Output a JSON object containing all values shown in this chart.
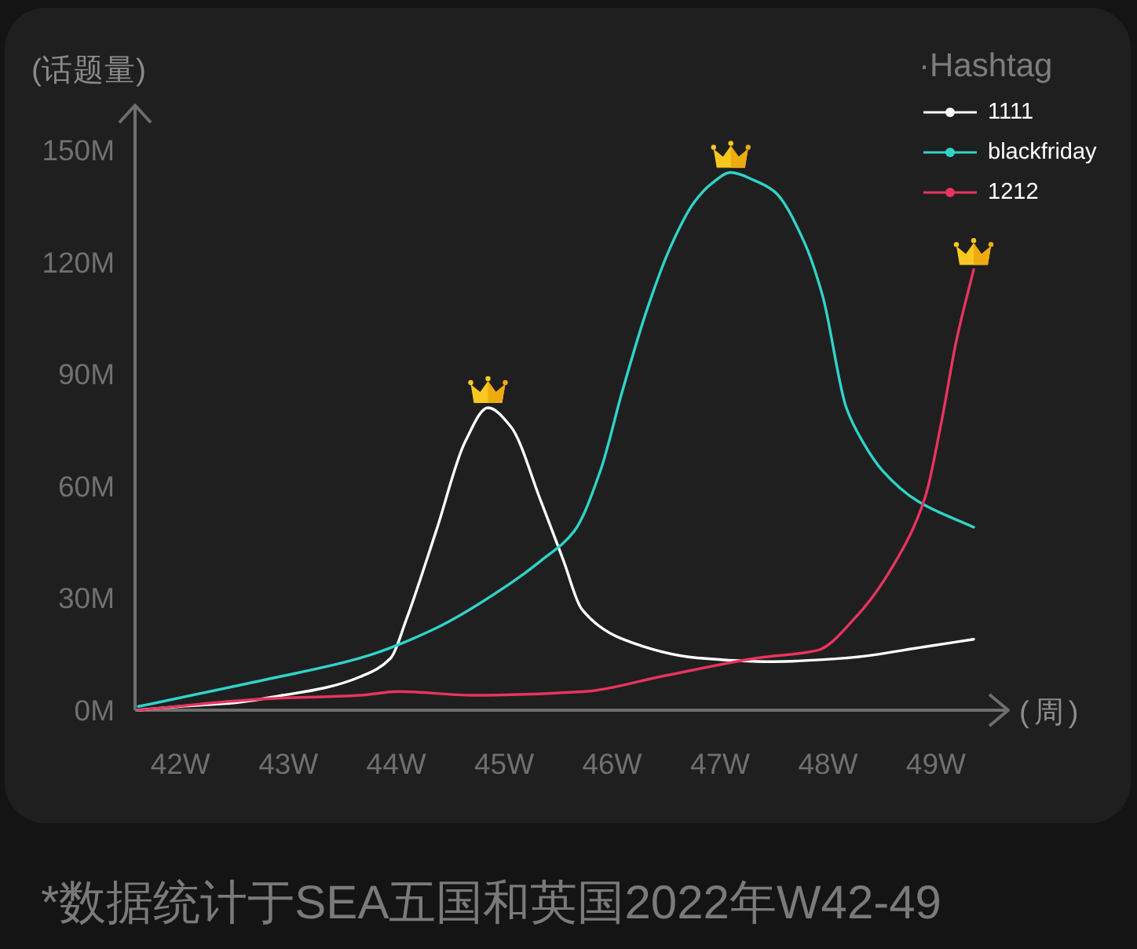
{
  "chart_data": {
    "type": "line",
    "xlabel": "(周)",
    "ylabel": "(话题量)",
    "legend_title": "·Hashtag",
    "legend": "top right",
    "annotations": [
      "*数据统计于SEA五国和英国2022年W42-49"
    ],
    "xlim": [
      41.58,
      49.67
    ],
    "xticks": [
      {
        "value": 42,
        "label": "42W"
      },
      {
        "value": 43,
        "label": "43W"
      },
      {
        "value": 44,
        "label": "44W"
      },
      {
        "value": 45,
        "label": "45W"
      },
      {
        "value": 46,
        "label": "46W"
      },
      {
        "value": 47,
        "label": "47W"
      },
      {
        "value": 48,
        "label": "48W"
      },
      {
        "value": 49,
        "label": "49W"
      }
    ],
    "ylim": [
      0,
      162
    ],
    "yticks": [
      {
        "value": 0,
        "label": "0M"
      },
      {
        "value": 30,
        "label": "30M"
      },
      {
        "value": 60,
        "label": "60M"
      },
      {
        "value": 90,
        "label": "90M"
      },
      {
        "value": 120,
        "label": "120M"
      },
      {
        "value": 150,
        "label": "150M"
      }
    ],
    "series": [
      {
        "name": "1111",
        "color": "#ffffff",
        "x": [
          41.61,
          42.0,
          42.51,
          42.95,
          43.34,
          43.67,
          43.95,
          44.09,
          44.37,
          44.64,
          44.85,
          45.06,
          45.34,
          45.55,
          45.72,
          46.1,
          46.79,
          47.49,
          48.18,
          48.9,
          49.35
        ],
        "values": [
          0,
          1,
          2,
          4,
          6,
          9,
          14,
          24,
          48,
          72,
          81,
          76,
          56,
          40,
          27,
          19,
          14,
          13,
          14,
          17,
          19
        ]
      },
      {
        "name": "blackfriday",
        "color": "#2fd4c8",
        "x": [
          41.61,
          41.78,
          42.76,
          43.67,
          44.37,
          45.06,
          45.34,
          45.65,
          45.89,
          46.1,
          46.32,
          46.54,
          46.76,
          46.92,
          47.1,
          47.31,
          47.5,
          47.77,
          47.95,
          48.17,
          48.32,
          48.51,
          48.83,
          49.35
        ],
        "values": [
          1,
          2,
          8,
          14,
          22,
          34,
          40,
          48,
          64,
          86,
          107,
          124,
          136,
          141,
          144,
          142,
          139,
          126,
          111,
          81,
          72,
          64,
          56,
          49
        ]
      },
      {
        "name": "1212",
        "color": "#e8345f",
        "x": [
          41.61,
          42.76,
          43.67,
          44.02,
          44.71,
          45.75,
          46.45,
          47.35,
          47.9,
          48.26,
          48.61,
          48.9,
          49.05,
          49.19,
          49.35
        ],
        "values": [
          0,
          3,
          4,
          5,
          4,
          5,
          9,
          14,
          16,
          25,
          39,
          57,
          77,
          99,
          118
        ]
      }
    ]
  }
}
